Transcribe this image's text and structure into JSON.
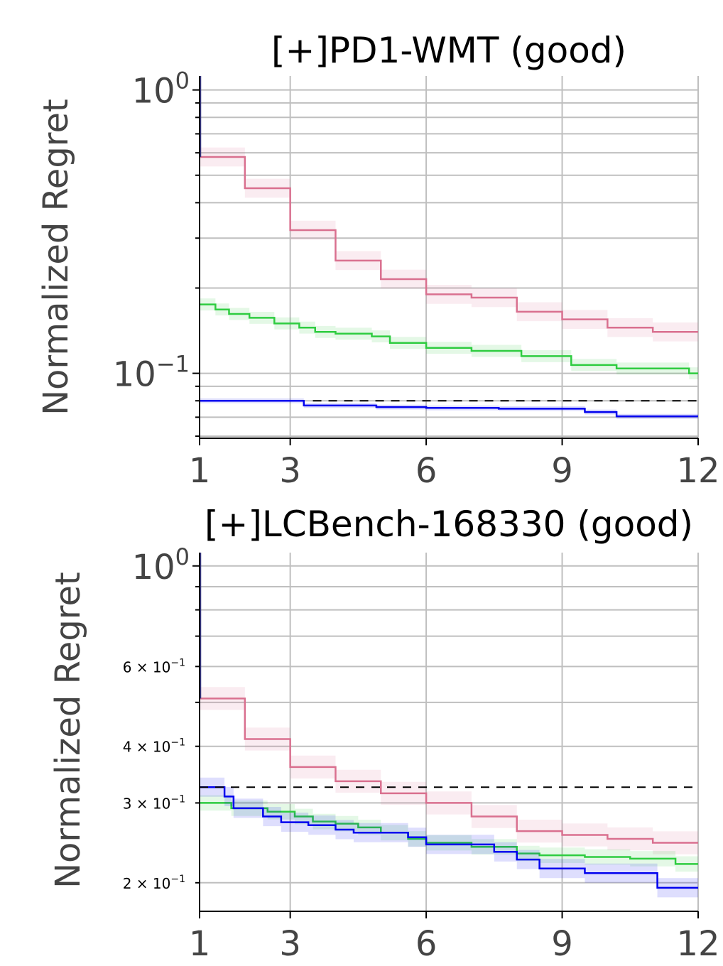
{
  "chart_data": [
    {
      "type": "line",
      "title": "[+]PD1-WMT (good)",
      "xlabel": "",
      "ylabel": "Normalized Regret",
      "yscale": "log",
      "xlim": [
        1,
        12
      ],
      "ylim": [
        0.059,
        1.12
      ],
      "xticks": [
        1,
        3,
        6,
        9,
        12
      ],
      "xtick_labels": [
        "1",
        "3",
        "6",
        "9",
        "12"
      ],
      "yticks": [
        {
          "value": 1.0,
          "base": "10",
          "exp": "0"
        },
        {
          "value": 0.1,
          "base": "10",
          "exp": "−1"
        }
      ],
      "grid": true,
      "series": [
        {
          "color": "#d9708f",
          "band": 0.08,
          "x": [
            1,
            2,
            3,
            4,
            5,
            6,
            7,
            8,
            9,
            10,
            11,
            12
          ],
          "y": [
            0.58,
            0.45,
            0.32,
            0.25,
            0.215,
            0.19,
            0.185,
            0.165,
            0.155,
            0.145,
            0.14,
            0.14
          ]
        },
        {
          "color": "#2ecc40",
          "band": 0.05,
          "x": [
            1,
            1.35,
            1.65,
            2.1,
            2.65,
            3.2,
            3.55,
            4,
            4.8,
            5.2,
            6,
            7,
            8.1,
            9.2,
            10.2,
            11.8,
            12
          ],
          "y": [
            0.175,
            0.168,
            0.162,
            0.157,
            0.15,
            0.145,
            0.14,
            0.138,
            0.135,
            0.128,
            0.123,
            0.12,
            0.115,
            0.107,
            0.104,
            0.1,
            0.1
          ]
        },
        {
          "color": "#0000ee",
          "band": 0.02,
          "x": [
            1,
            3.3,
            4.9,
            6,
            7.6,
            9.5,
            10.2,
            12
          ],
          "y": [
            0.08,
            0.077,
            0.076,
            0.0755,
            0.075,
            0.073,
            0.0705,
            0.0705
          ]
        }
      ],
      "reference_line": {
        "y": 0.08,
        "style": "dashed",
        "color": "#000000",
        "x_start": 3.5
      }
    },
    {
      "type": "line",
      "title": "[+]LCBench-168330 (good)",
      "xlabel": "",
      "ylabel": "Normalized Regret",
      "yscale": "log",
      "xlim": [
        1,
        12
      ],
      "ylim": [
        0.173,
        1.07
      ],
      "xticks": [
        1,
        3,
        6,
        9,
        12
      ],
      "xtick_labels": [
        "1",
        "3",
        "6",
        "9",
        "12"
      ],
      "yticks": [
        {
          "value": 1.0,
          "base": "10",
          "exp": "0",
          "major": true
        },
        {
          "value": 0.6,
          "label": "6 × 10",
          "exp": "−1"
        },
        {
          "value": 0.4,
          "label": "4 × 10",
          "exp": "−1"
        },
        {
          "value": 0.3,
          "label": "3 × 10",
          "exp": "−1"
        },
        {
          "value": 0.2,
          "label": "2 × 10",
          "exp": "−1"
        }
      ],
      "grid": true,
      "series": [
        {
          "color": "#d9708f",
          "band": 0.06,
          "x": [
            1,
            2,
            3,
            4,
            5,
            6,
            7,
            8,
            9,
            10,
            11,
            12
          ],
          "y": [
            0.51,
            0.415,
            0.36,
            0.335,
            0.315,
            0.3,
            0.28,
            0.26,
            0.255,
            0.25,
            0.245,
            0.245
          ]
        },
        {
          "color": "#2ecc40",
          "band": 0.04,
          "x": [
            1,
            1.7,
            2.5,
            3.1,
            3.5,
            4,
            4.5,
            5,
            5.6,
            6,
            7,
            8,
            8.5,
            9.5,
            10.5,
            11.5,
            12
          ],
          "y": [
            0.3,
            0.292,
            0.287,
            0.28,
            0.273,
            0.27,
            0.265,
            0.258,
            0.25,
            0.245,
            0.24,
            0.232,
            0.23,
            0.228,
            0.226,
            0.22,
            0.22
          ]
        },
        {
          "color": "#0000ee",
          "band": 0.05,
          "x": [
            1,
            1.55,
            1.75,
            2.4,
            2.8,
            3.4,
            4,
            4.4,
            5.6,
            6,
            7.5,
            8,
            8.5,
            9.5,
            11.1,
            12
          ],
          "y": [
            0.325,
            0.31,
            0.292,
            0.28,
            0.272,
            0.268,
            0.262,
            0.258,
            0.252,
            0.243,
            0.234,
            0.225,
            0.215,
            0.21,
            0.195,
            0.195
          ]
        }
      ],
      "reference_line": {
        "y": 0.325,
        "style": "dashed",
        "color": "#000000",
        "x_start": 1
      }
    }
  ]
}
